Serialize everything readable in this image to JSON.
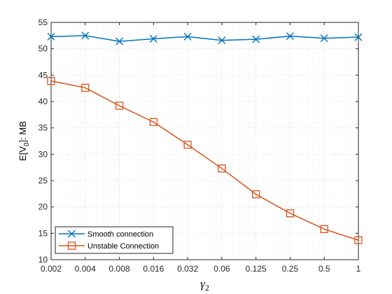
{
  "chart_data": {
    "type": "line",
    "categories": [
      "0.002",
      "0.004",
      "0.008",
      "0.016",
      "0.032",
      "0.06",
      "0.125",
      "0.25",
      "0.5",
      "1"
    ],
    "xlabel": "γ2",
    "ylabel": "E[V0]: MB",
    "ylim": [
      10,
      55
    ],
    "yticks": [
      10,
      15,
      20,
      25,
      30,
      35,
      40,
      45,
      50,
      55
    ],
    "grid": true,
    "legend_position": "bottom-left",
    "series": [
      {
        "name": "Smooth connection",
        "marker": "x",
        "color": "#0072BD",
        "values": [
          52.3,
          52.5,
          51.4,
          51.9,
          52.3,
          51.6,
          51.8,
          52.4,
          52.0,
          52.2
        ]
      },
      {
        "name": "Unstable Connection",
        "marker": "square",
        "color": "#D95319",
        "values": [
          43.9,
          42.6,
          39.2,
          36.1,
          31.8,
          27.3,
          22.4,
          18.8,
          15.8,
          13.7
        ]
      }
    ]
  }
}
